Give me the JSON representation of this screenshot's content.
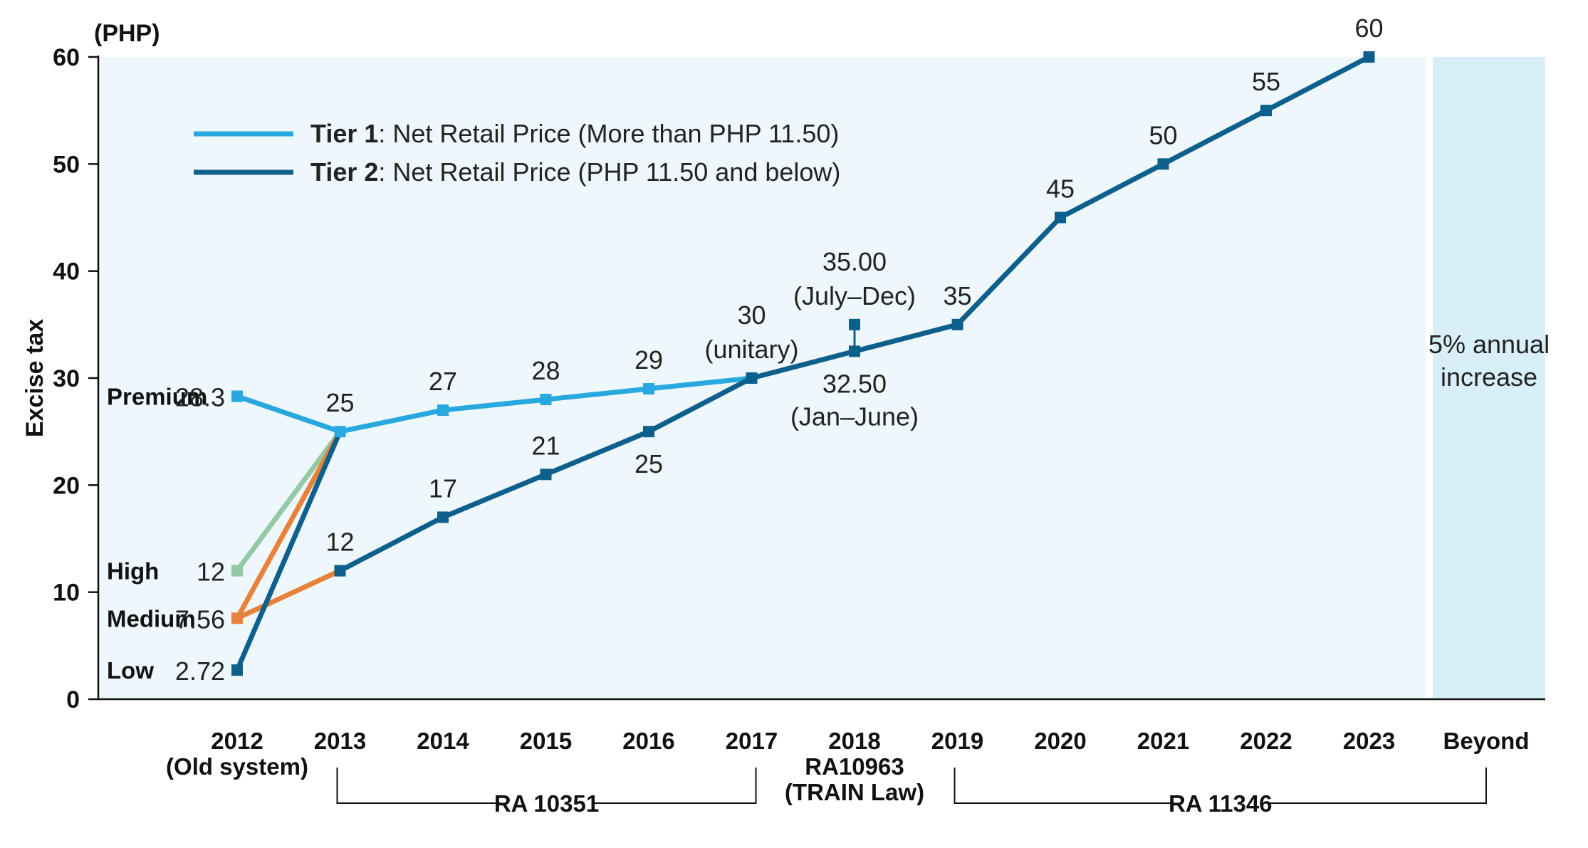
{
  "chart_data": {
    "type": "line",
    "unit_label": "(PHP)",
    "ylabel": "Excise tax",
    "ylim": [
      0,
      60
    ],
    "yticks": [
      "0",
      "10",
      "20",
      "30",
      "40",
      "50",
      "60"
    ],
    "categories": [
      {
        "year": "2012",
        "sub": "(Old system)"
      },
      {
        "year": "2013",
        "sub": ""
      },
      {
        "year": "2014",
        "sub": ""
      },
      {
        "year": "2015",
        "sub": ""
      },
      {
        "year": "2016",
        "sub": ""
      },
      {
        "year": "2017",
        "sub": ""
      },
      {
        "year": "2018",
        "sub": "RA10963",
        "sub2": "(TRAIN Law)"
      },
      {
        "year": "2019",
        "sub": ""
      },
      {
        "year": "2020",
        "sub": ""
      },
      {
        "year": "2021",
        "sub": ""
      },
      {
        "year": "2022",
        "sub": ""
      },
      {
        "year": "2023",
        "sub": ""
      },
      {
        "year": "Beyond",
        "sub": ""
      }
    ],
    "legend": [
      {
        "bold": "Tier 1",
        "rest": ": Net Retail Price (More than PHP 11.50)",
        "color": "#29a8e0"
      },
      {
        "bold": "Tier 2",
        "rest": ": Net Retail Price (PHP 11.50 and below)",
        "color": "#0d5f8c"
      }
    ],
    "series": [
      {
        "name": "Tier 1",
        "color": "#29a8e0",
        "points": [
          [
            0,
            28.3
          ],
          [
            1,
            25
          ],
          [
            2,
            27
          ],
          [
            3,
            28
          ],
          [
            4,
            29
          ],
          [
            5,
            30
          ]
        ]
      },
      {
        "name": "Tier 2",
        "color": "#0d5f8c",
        "points": [
          [
            1,
            12
          ],
          [
            2,
            17
          ],
          [
            3,
            21
          ],
          [
            4,
            25
          ],
          [
            5,
            30
          ],
          [
            6,
            32.5
          ],
          [
            7,
            35
          ],
          [
            8,
            45
          ],
          [
            9,
            50
          ],
          [
            10,
            55
          ],
          [
            11,
            60
          ]
        ]
      },
      {
        "name": "High",
        "color": "#93c9a5",
        "points": [
          [
            0,
            12
          ],
          [
            1,
            25
          ]
        ]
      },
      {
        "name": "Medium to 2013 Tier 1",
        "color": "#e8823a",
        "points": [
          [
            0,
            7.56
          ],
          [
            1,
            25
          ]
        ]
      },
      {
        "name": "Medium to 2013 Tier 2",
        "color": "#e8823a",
        "points": [
          [
            0,
            7.56
          ],
          [
            1,
            12
          ]
        ]
      },
      {
        "name": "Low to 2013 Tier 1",
        "color": "#0d5f8c",
        "points": [
          [
            0,
            2.72
          ],
          [
            1,
            25
          ]
        ]
      }
    ],
    "markers": [
      {
        "x": 0,
        "y": 28.3,
        "color": "#29a8e0"
      },
      {
        "x": 0,
        "y": 12,
        "color": "#93c9a5"
      },
      {
        "x": 0,
        "y": 7.56,
        "color": "#e8823a"
      },
      {
        "x": 0,
        "y": 2.72,
        "color": "#0d5f8c"
      },
      {
        "x": 6,
        "y": 35,
        "color": "#0d5f8c"
      }
    ],
    "left_labels": [
      {
        "name": "Premium",
        "value": "28.3",
        "y": 28.3
      },
      {
        "name": "High",
        "value": "12",
        "y": 12
      },
      {
        "name": "Medium",
        "value": "7.56",
        "y": 7.56
      },
      {
        "name": "Low",
        "value": "2.72",
        "y": 2.72
      }
    ],
    "data_labels": [
      {
        "text": "25",
        "x": 1,
        "y": 25,
        "pos": "above"
      },
      {
        "text": "27",
        "x": 2,
        "y": 27,
        "pos": "above"
      },
      {
        "text": "28",
        "x": 3,
        "y": 28,
        "pos": "above"
      },
      {
        "text": "29",
        "x": 4,
        "y": 29,
        "pos": "above"
      },
      {
        "text": "12",
        "x": 1,
        "y": 12,
        "pos": "above"
      },
      {
        "text": "17",
        "x": 2,
        "y": 17,
        "pos": "above"
      },
      {
        "text": "21",
        "x": 3,
        "y": 21,
        "pos": "above"
      },
      {
        "text": "25",
        "x": 4,
        "y": 25,
        "pos": "below"
      },
      {
        "text": "30",
        "x": 5,
        "y": 30,
        "pos": "above2"
      },
      {
        "text": "(unitary)",
        "x": 5,
        "y": 30,
        "pos": "above"
      },
      {
        "text": "35.00",
        "x": 6,
        "y": 35,
        "pos": "above2"
      },
      {
        "text": "(July–Dec)",
        "x": 6,
        "y": 35,
        "pos": "above"
      },
      {
        "text": "32.50",
        "x": 6,
        "y": 32.5,
        "pos": "below"
      },
      {
        "text": "(Jan–June)",
        "x": 6,
        "y": 32.5,
        "pos": "below2"
      },
      {
        "text": "35",
        "x": 7,
        "y": 35,
        "pos": "above"
      },
      {
        "text": "45",
        "x": 8,
        "y": 45,
        "pos": "above"
      },
      {
        "text": "50",
        "x": 9,
        "y": 50,
        "pos": "above"
      },
      {
        "text": "55",
        "x": 10,
        "y": 55,
        "pos": "above"
      },
      {
        "text": "60",
        "x": 11,
        "y": 60,
        "pos": "above"
      }
    ],
    "beyond_note": [
      "5% annual",
      "increase"
    ],
    "brackets": [
      {
        "label": "RA 10351",
        "from": 1,
        "to": 5
      },
      {
        "label": "RA 11346",
        "from": 7,
        "to": 12
      }
    ]
  }
}
